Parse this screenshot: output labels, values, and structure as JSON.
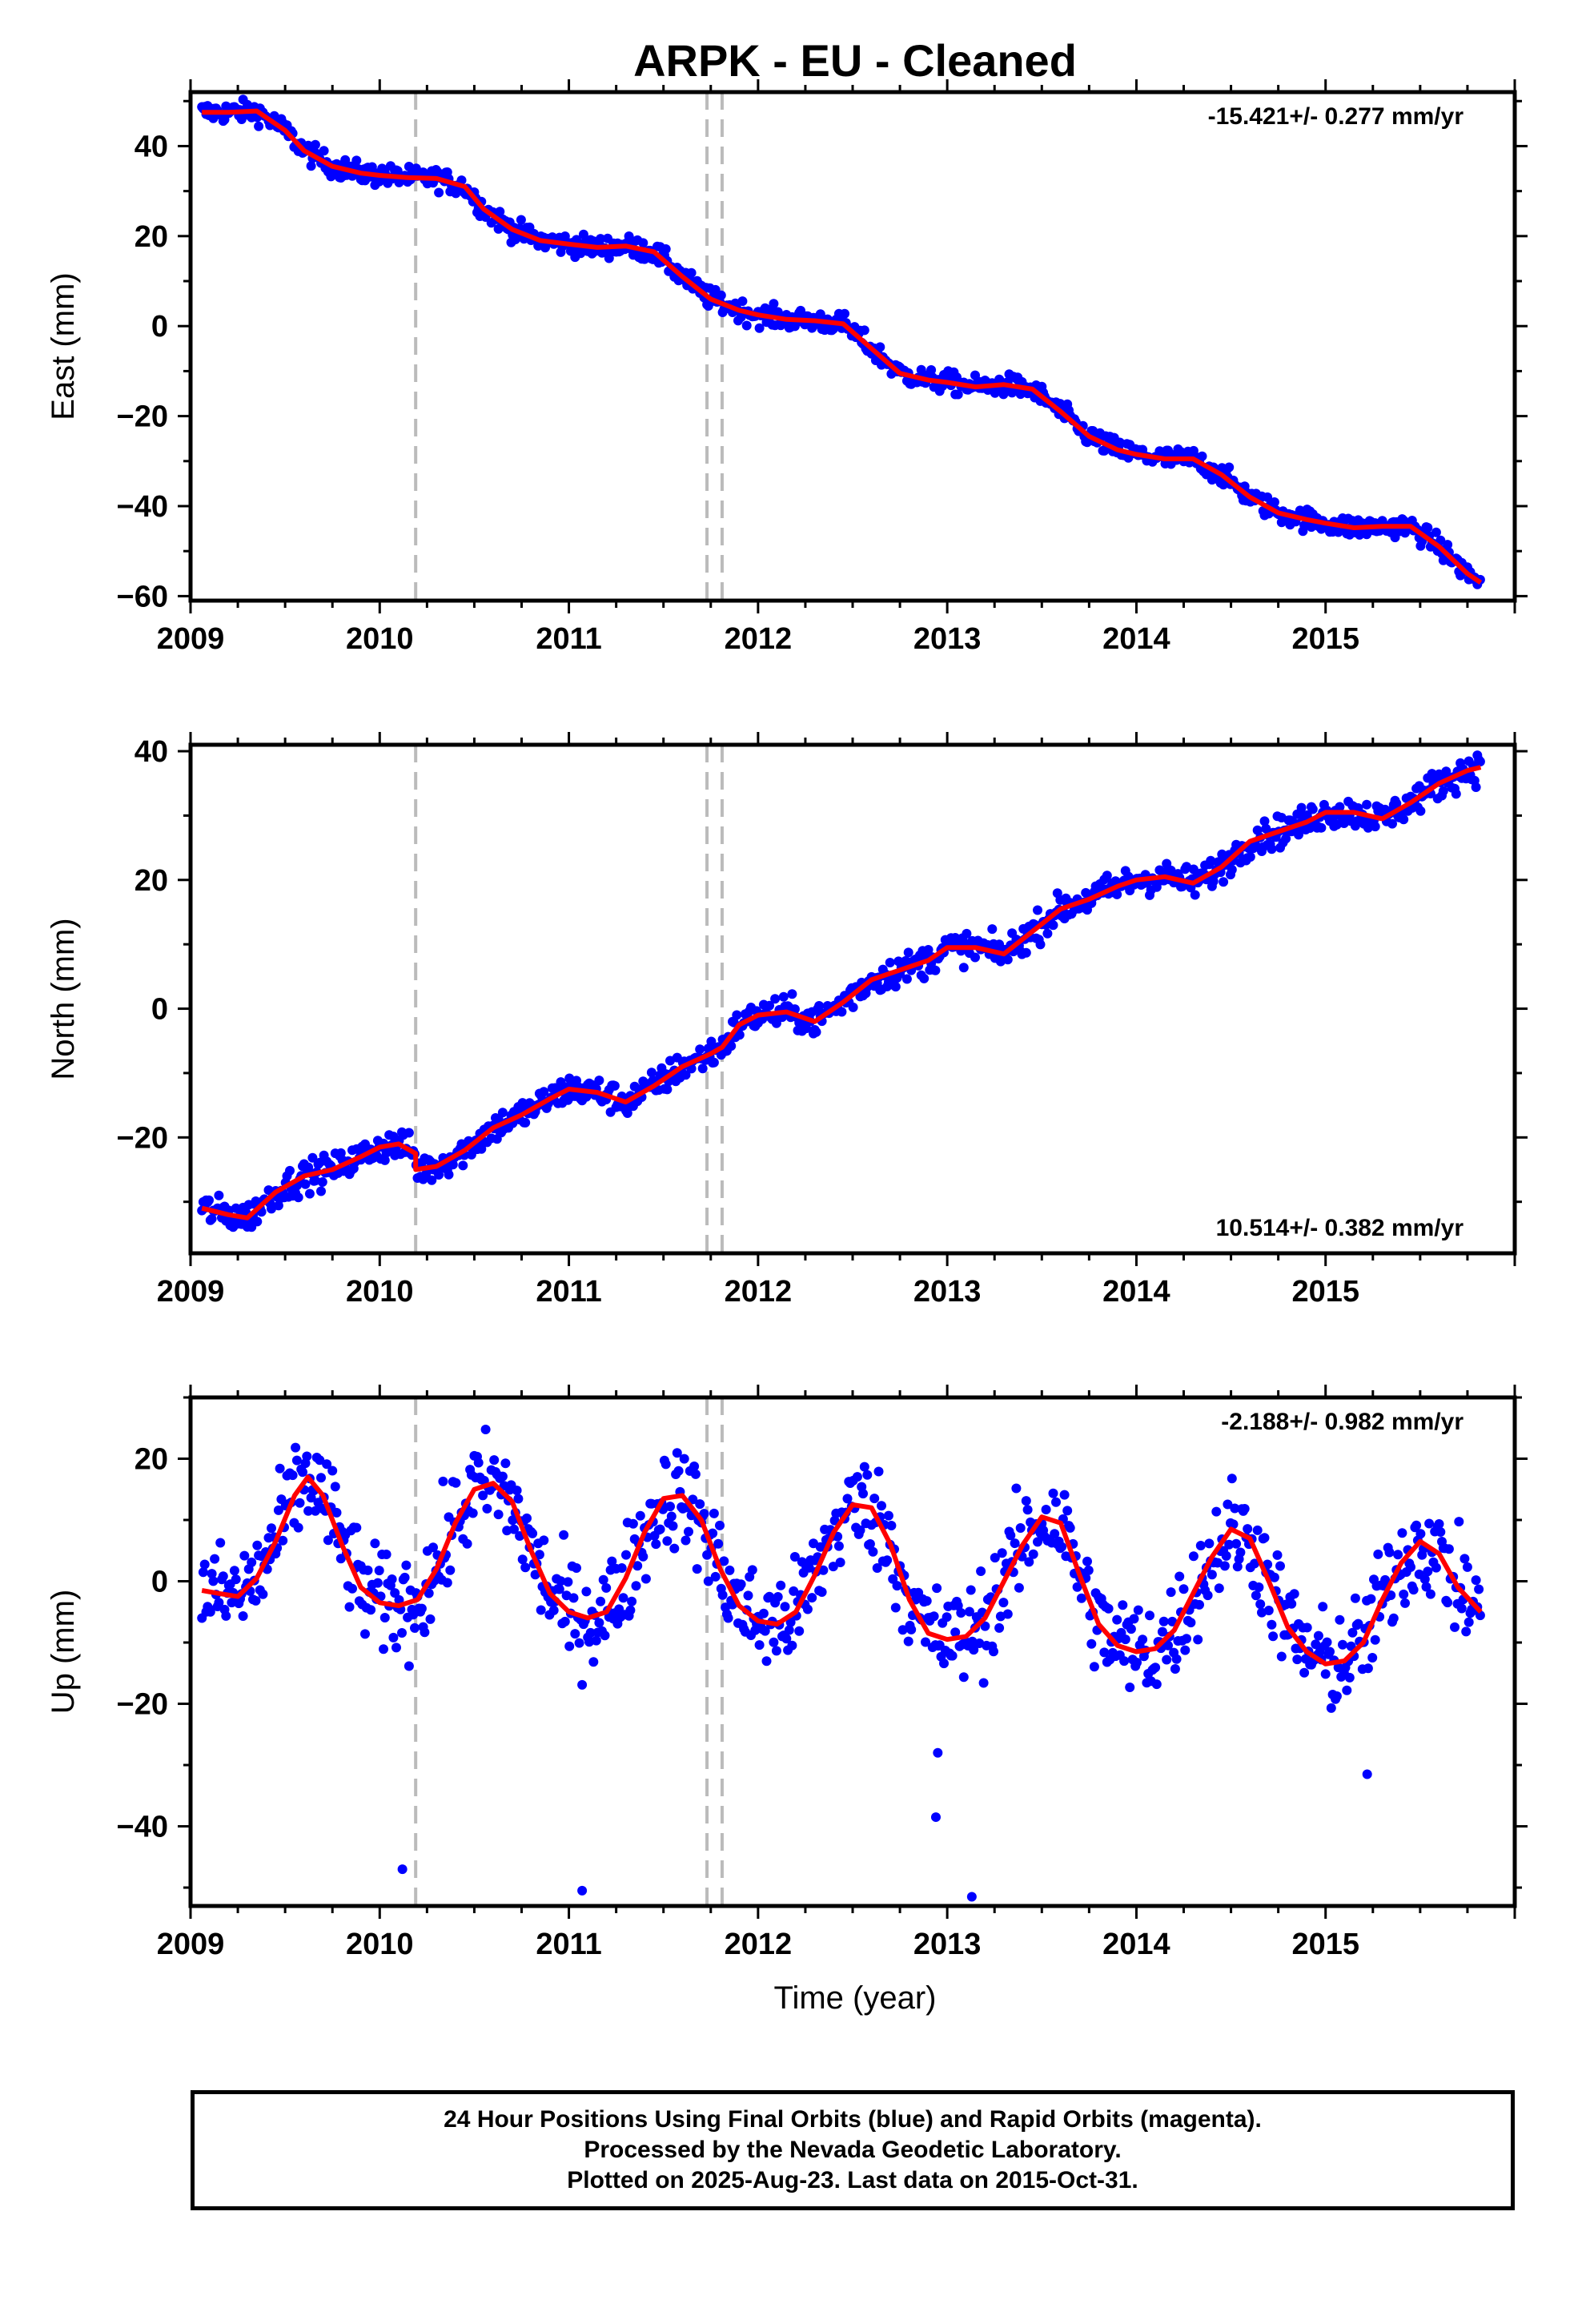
{
  "figure": {
    "title": "ARPK  - EU - Cleaned",
    "xlabel": "Time (year)",
    "footer": [
      "24 Hour Positions Using Final Orbits (blue) and Rapid Orbits (magenta).",
      "Processed by the Nevada Geodetic Laboratory.",
      "Plotted on 2025-Aug-23. Last data on 2015-Oct-31."
    ],
    "colors": {
      "points": "#0000ff",
      "model": "#ff0000",
      "steps": "#bbbbbb",
      "frame": "#000000"
    }
  },
  "chart_data": [
    {
      "type": "scatter",
      "component": "east",
      "ylabel": "East (mm)",
      "rate_label": "-15.421+/- 0.277 mm/yr",
      "rate_position": "top-right",
      "xlim": [
        2009.0,
        2016.0
      ],
      "ylim": [
        -61,
        52
      ],
      "x_ticks": [
        2009,
        2010,
        2011,
        2012,
        2013,
        2014,
        2015
      ],
      "y_ticks": [
        -60,
        -40,
        -20,
        0,
        20,
        40
      ],
      "y_tick_labels": [
        "−60",
        "−40",
        "−20",
        "0",
        "20",
        "40"
      ],
      "step_lines": [
        2010.19,
        2011.73,
        2011.81
      ],
      "model": {
        "x": [
          2009.06,
          2009.2,
          2009.35,
          2009.5,
          2009.6,
          2009.75,
          2009.9,
          2010.0,
          2010.15,
          2010.3,
          2010.45,
          2010.55,
          2010.7,
          2010.85,
          2011.0,
          2011.15,
          2011.3,
          2011.45,
          2011.6,
          2011.75,
          2011.9,
          2012.0,
          2012.15,
          2012.3,
          2012.45,
          2012.6,
          2012.75,
          2012.9,
          2013.0,
          2013.15,
          2013.3,
          2013.45,
          2013.6,
          2013.75,
          2013.9,
          2014.0,
          2014.15,
          2014.3,
          2014.45,
          2014.6,
          2014.75,
          2014.9,
          2015.0,
          2015.15,
          2015.3,
          2015.45,
          2015.6,
          2015.75,
          2015.82
        ],
        "y": [
          47.5,
          47.5,
          47.8,
          43.5,
          39,
          35.5,
          34,
          33.5,
          33,
          32.8,
          31,
          26,
          21.5,
          19,
          18.2,
          17.5,
          17.8,
          16.5,
          11,
          6,
          3.5,
          2.5,
          1.5,
          1.2,
          0.5,
          -5,
          -10.5,
          -12,
          -12.5,
          -13.5,
          -13,
          -14,
          -19,
          -24.5,
          -27.5,
          -28.5,
          -29.5,
          -29.5,
          -33,
          -38,
          -41.5,
          -43,
          -43.8,
          -44.8,
          -44.5,
          -44.5,
          -49,
          -55,
          -57
        ]
      }
    },
    {
      "type": "scatter",
      "component": "north",
      "ylabel": "North (mm)",
      "rate_label": "10.514+/- 0.382 mm/yr",
      "rate_position": "bottom-right",
      "xlim": [
        2009.0,
        2016.0
      ],
      "ylim": [
        -38,
        41
      ],
      "x_ticks": [
        2009,
        2010,
        2011,
        2012,
        2013,
        2014,
        2015
      ],
      "y_ticks": [
        -20,
        0,
        20,
        40
      ],
      "y_tick_labels": [
        "−20",
        "0",
        "20",
        "40"
      ],
      "step_lines": [
        2010.19,
        2011.73,
        2011.81
      ],
      "model": {
        "x": [
          2009.06,
          2009.2,
          2009.3,
          2009.45,
          2009.6,
          2009.75,
          2009.9,
          2010.0,
          2010.1,
          2010.19,
          2010.19,
          2010.3,
          2010.45,
          2010.6,
          2010.75,
          2010.9,
          2011.0,
          2011.15,
          2011.3,
          2011.45,
          2011.6,
          2011.75,
          2011.81,
          2011.9,
          2012.0,
          2012.15,
          2012.3,
          2012.45,
          2012.6,
          2012.75,
          2012.9,
          2013.0,
          2013.15,
          2013.3,
          2013.45,
          2013.6,
          2013.75,
          2013.9,
          2014.0,
          2014.15,
          2014.3,
          2014.45,
          2014.6,
          2014.75,
          2014.9,
          2015.0,
          2015.15,
          2015.3,
          2015.45,
          2015.6,
          2015.75,
          2015.82
        ],
        "y": [
          -31,
          -32,
          -32.5,
          -28.5,
          -26,
          -25,
          -23,
          -21.5,
          -21,
          -22.5,
          -25,
          -24.5,
          -22,
          -18.5,
          -16.5,
          -14,
          -12.5,
          -13,
          -14.5,
          -12,
          -9,
          -7,
          -6,
          -2.5,
          -1,
          -0.5,
          -2,
          1,
          4.5,
          6,
          7.5,
          9.5,
          9.5,
          8.5,
          12,
          15.5,
          17,
          19,
          20,
          20.5,
          19.5,
          22,
          26,
          27.5,
          29,
          30.5,
          30.5,
          29.5,
          32,
          35,
          37,
          37.5
        ]
      }
    },
    {
      "type": "scatter",
      "component": "up",
      "ylabel": "Up (mm)",
      "rate_label": "-2.188+/- 0.982 mm/yr",
      "rate_position": "top-right",
      "xlim": [
        2009.0,
        2016.0
      ],
      "ylim": [
        -53,
        30
      ],
      "x_ticks": [
        2009,
        2010,
        2011,
        2012,
        2013,
        2014,
        2015
      ],
      "y_ticks": [
        -40,
        -20,
        0,
        20
      ],
      "y_tick_labels": [
        "−40",
        "−20",
        "0",
        "20"
      ],
      "step_lines": [
        2010.19,
        2011.73,
        2011.81
      ],
      "outliers": {
        "x": [
          2010.12,
          2011.07,
          2012.94,
          2013.13,
          2012.95,
          2015.22
        ],
        "y": [
          -47,
          -50.5,
          -38.5,
          -51.5,
          -28,
          -31.5
        ]
      },
      "model": {
        "x": [
          2009.06,
          2009.15,
          2009.25,
          2009.35,
          2009.45,
          2009.55,
          2009.62,
          2009.7,
          2009.8,
          2009.9,
          2010.0,
          2010.1,
          2010.2,
          2010.3,
          2010.4,
          2010.5,
          2010.6,
          2010.7,
          2010.8,
          2010.9,
          2011.0,
          2011.1,
          2011.2,
          2011.3,
          2011.4,
          2011.5,
          2011.6,
          2011.7,
          2011.8,
          2011.9,
          2012.0,
          2012.1,
          2012.2,
          2012.3,
          2012.4,
          2012.5,
          2012.6,
          2012.7,
          2012.8,
          2012.9,
          2013.0,
          2013.1,
          2013.2,
          2013.3,
          2013.4,
          2013.5,
          2013.6,
          2013.7,
          2013.8,
          2013.9,
          2014.0,
          2014.1,
          2014.2,
          2014.3,
          2014.4,
          2014.5,
          2014.6,
          2014.7,
          2014.8,
          2014.9,
          2015.0,
          2015.1,
          2015.2,
          2015.3,
          2015.4,
          2015.5,
          2015.6,
          2015.7,
          2015.82
        ],
        "y": [
          -1.5,
          -2,
          -2.5,
          0.5,
          6.5,
          14,
          17,
          14,
          6,
          -1,
          -3.5,
          -4,
          -3,
          2,
          9.5,
          15,
          16,
          13,
          5,
          -2,
          -5,
          -6,
          -5,
          0.5,
          8,
          13.5,
          14,
          10,
          2,
          -4,
          -6.5,
          -7,
          -5,
          1,
          8,
          12.5,
          12,
          6,
          -3,
          -8.5,
          -9.5,
          -9,
          -6,
          0,
          6,
          10.5,
          9.5,
          1,
          -7,
          -10.5,
          -11.5,
          -11,
          -8,
          -2,
          4,
          8.5,
          7,
          0,
          -7.5,
          -11.5,
          -13.5,
          -13,
          -10,
          -3,
          3,
          6.5,
          4.5,
          -1,
          -5
        ]
      }
    }
  ]
}
